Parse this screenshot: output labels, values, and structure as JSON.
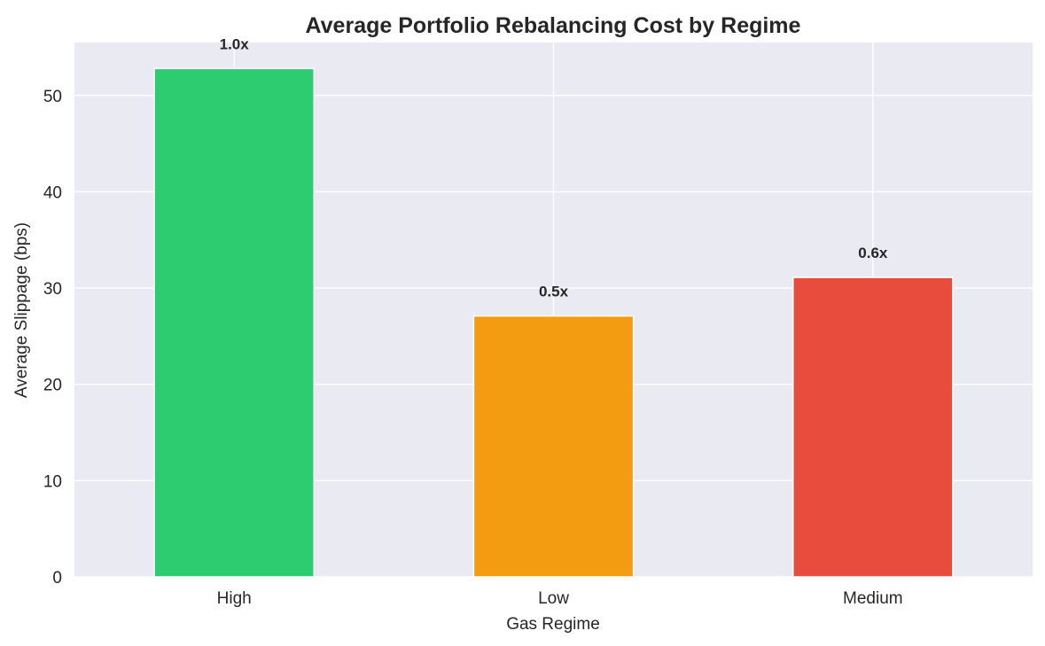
{
  "chart_data": {
    "type": "bar",
    "title": "Average Portfolio Rebalancing Cost by Regime",
    "xlabel": "Gas Regime",
    "ylabel": "Average Slippage (bps)",
    "categories": [
      "High",
      "Low",
      "Medium"
    ],
    "values": [
      52.8,
      27.1,
      31.1
    ],
    "data_labels": [
      "1.0x",
      "0.5x",
      "0.6x"
    ],
    "colors": [
      "#2ecc71",
      "#f39c12",
      "#e74c3c"
    ],
    "ylim": [
      0,
      55.5
    ],
    "yticks": [
      0,
      10,
      20,
      30,
      40,
      50
    ],
    "grid": true,
    "background": "#eaeaf2"
  }
}
